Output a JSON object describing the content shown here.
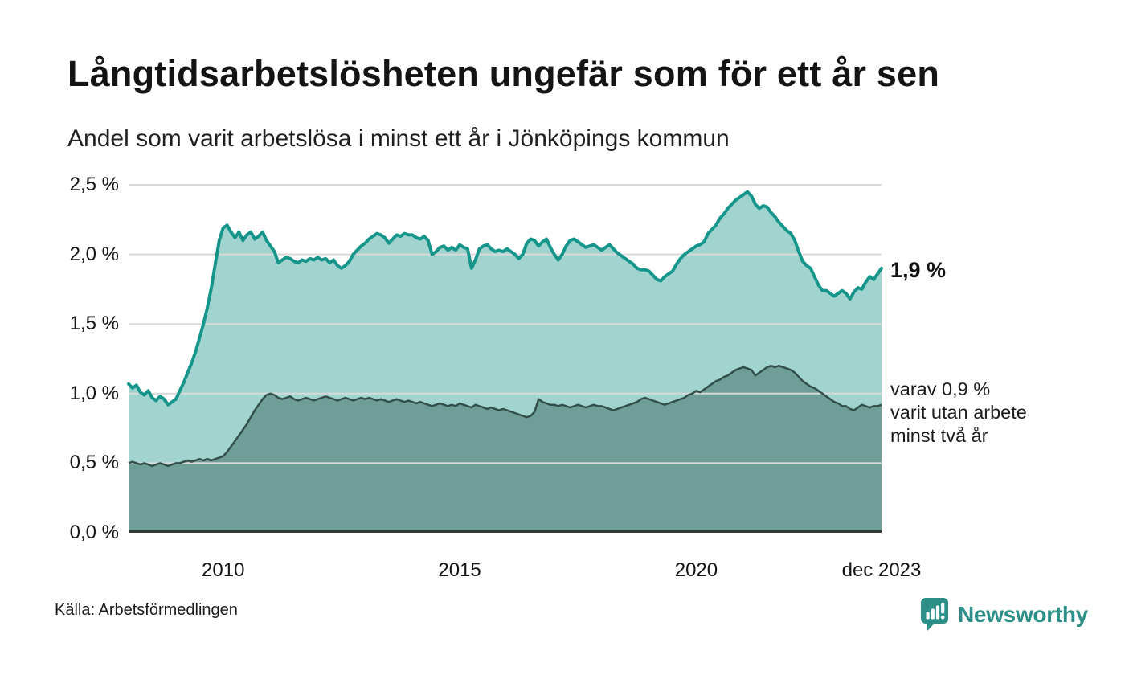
{
  "header": {
    "title": "Långtidsarbetslösheten ungefär som för ett år sen",
    "subtitle": "Andel som varit arbetslösa i minst ett år i Jönköpings kommun"
  },
  "annotations": {
    "end_total": "1,9 %",
    "end_sub_lines": [
      "varav 0,9 %",
      "varit utan arbete",
      "minst två år"
    ]
  },
  "footer": {
    "source": "Källa: Arbetsförmedlingen",
    "brand": "Newsworthy"
  },
  "colors": {
    "line_total": "#16968a",
    "fill_total": "#a2d4cf",
    "line_sub": "#334f4a",
    "fill_sub": "#6f9e98",
    "gridline": "#d9d9d9",
    "baseline": "#333b39",
    "brand_teal": "#2e8f88",
    "text": "#141414"
  },
  "chart_data": {
    "type": "area",
    "title": "Långtidsarbetslösheten ungefär som för ett år sen",
    "subtitle": "Andel som varit arbetslösa i minst ett år i Jönköpings kommun",
    "unit": "%",
    "grid": true,
    "legend_position": "end-of-line-labels",
    "x_start_year": 2008,
    "x_interval": "monthly",
    "x_end_label": "dec 2023",
    "ylim": [
      0,
      2.5
    ],
    "yticks": [
      {
        "value": 0.0,
        "label": "0,0 %"
      },
      {
        "value": 0.5,
        "label": "0,5 %"
      },
      {
        "value": 1.0,
        "label": "1,0 %"
      },
      {
        "value": 1.5,
        "label": "1,5 %"
      },
      {
        "value": 2.0,
        "label": "2,0 %"
      },
      {
        "value": 2.5,
        "label": "2,5 %"
      }
    ],
    "xticks": [
      {
        "year": 2010.0,
        "label": "2010"
      },
      {
        "year": 2015.0,
        "label": "2015"
      },
      {
        "year": 2020.0,
        "label": "2020"
      },
      {
        "year": 2023.9167,
        "label": "dec 2023"
      }
    ],
    "series": [
      {
        "id": "arbetslosa-minst-ett-ar",
        "end_label": "1,9 %",
        "latest_value": 1.9,
        "color": "#16968a",
        "fill": "#a2d4cf",
        "values": [
          1.07,
          1.04,
          1.06,
          1.01,
          0.99,
          1.02,
          0.97,
          0.95,
          0.98,
          0.96,
          0.92,
          0.94,
          0.96,
          1.02,
          1.08,
          1.15,
          1.22,
          1.3,
          1.4,
          1.5,
          1.62,
          1.76,
          1.93,
          2.1,
          2.19,
          2.21,
          2.16,
          2.12,
          2.16,
          2.1,
          2.14,
          2.16,
          2.11,
          2.13,
          2.16,
          2.1,
          2.06,
          2.02,
          1.94,
          1.96,
          1.98,
          1.97,
          1.95,
          1.94,
          1.96,
          1.95,
          1.97,
          1.96,
          1.98,
          1.96,
          1.97,
          1.94,
          1.96,
          1.92,
          1.9,
          1.92,
          1.95,
          2.0,
          2.03,
          2.06,
          2.08,
          2.11,
          2.13,
          2.15,
          2.14,
          2.12,
          2.08,
          2.11,
          2.14,
          2.13,
          2.15,
          2.14,
          2.14,
          2.12,
          2.11,
          2.13,
          2.1,
          2.0,
          2.02,
          2.05,
          2.06,
          2.03,
          2.05,
          2.03,
          2.07,
          2.05,
          2.04,
          1.9,
          1.96,
          2.04,
          2.06,
          2.07,
          2.04,
          2.02,
          2.03,
          2.02,
          2.04,
          2.02,
          2.0,
          1.97,
          2.0,
          2.08,
          2.11,
          2.1,
          2.06,
          2.09,
          2.11,
          2.05,
          2.0,
          1.96,
          2.0,
          2.06,
          2.1,
          2.11,
          2.09,
          2.07,
          2.05,
          2.06,
          2.07,
          2.05,
          2.03,
          2.05,
          2.07,
          2.04,
          2.01,
          1.99,
          1.97,
          1.95,
          1.93,
          1.9,
          1.89,
          1.89,
          1.88,
          1.85,
          1.82,
          1.81,
          1.84,
          1.86,
          1.88,
          1.93,
          1.97,
          2.0,
          2.02,
          2.04,
          2.06,
          2.07,
          2.09,
          2.15,
          2.18,
          2.21,
          2.26,
          2.29,
          2.33,
          2.36,
          2.39,
          2.41,
          2.43,
          2.45,
          2.42,
          2.36,
          2.33,
          2.35,
          2.34,
          2.3,
          2.27,
          2.23,
          2.2,
          2.17,
          2.15,
          2.1,
          2.02,
          1.95,
          1.92,
          1.9,
          1.84,
          1.78,
          1.74,
          1.74,
          1.72,
          1.7,
          1.72,
          1.74,
          1.72,
          1.68,
          1.73,
          1.76,
          1.75,
          1.8,
          1.84,
          1.82,
          1.86,
          1.9
        ]
      },
      {
        "id": "varav-utan-arbete-minst-tva-ar",
        "end_label": "varav 0,9 % varit utan arbete minst två år",
        "latest_value": 0.9,
        "color": "#334f4a",
        "fill": "#6f9e98",
        "values": [
          0.5,
          0.51,
          0.5,
          0.49,
          0.5,
          0.49,
          0.48,
          0.49,
          0.5,
          0.49,
          0.48,
          0.49,
          0.5,
          0.5,
          0.51,
          0.52,
          0.51,
          0.52,
          0.53,
          0.52,
          0.53,
          0.52,
          0.53,
          0.54,
          0.55,
          0.58,
          0.62,
          0.66,
          0.7,
          0.74,
          0.78,
          0.83,
          0.88,
          0.92,
          0.96,
          0.99,
          1.0,
          0.99,
          0.97,
          0.96,
          0.97,
          0.98,
          0.96,
          0.95,
          0.96,
          0.97,
          0.96,
          0.95,
          0.96,
          0.97,
          0.98,
          0.97,
          0.96,
          0.95,
          0.96,
          0.97,
          0.96,
          0.95,
          0.96,
          0.97,
          0.96,
          0.97,
          0.96,
          0.95,
          0.96,
          0.95,
          0.94,
          0.95,
          0.96,
          0.95,
          0.94,
          0.95,
          0.94,
          0.93,
          0.94,
          0.93,
          0.92,
          0.91,
          0.92,
          0.93,
          0.92,
          0.91,
          0.92,
          0.91,
          0.93,
          0.92,
          0.91,
          0.9,
          0.92,
          0.91,
          0.9,
          0.89,
          0.9,
          0.89,
          0.88,
          0.89,
          0.88,
          0.87,
          0.86,
          0.85,
          0.84,
          0.83,
          0.84,
          0.87,
          0.96,
          0.94,
          0.93,
          0.92,
          0.92,
          0.91,
          0.92,
          0.91,
          0.9,
          0.91,
          0.92,
          0.91,
          0.9,
          0.91,
          0.92,
          0.91,
          0.91,
          0.9,
          0.89,
          0.88,
          0.89,
          0.9,
          0.91,
          0.92,
          0.93,
          0.94,
          0.96,
          0.97,
          0.96,
          0.95,
          0.94,
          0.93,
          0.92,
          0.93,
          0.94,
          0.95,
          0.96,
          0.97,
          0.99,
          1.0,
          1.02,
          1.01,
          1.03,
          1.05,
          1.07,
          1.09,
          1.1,
          1.12,
          1.13,
          1.15,
          1.17,
          1.18,
          1.19,
          1.18,
          1.17,
          1.13,
          1.15,
          1.17,
          1.19,
          1.2,
          1.19,
          1.2,
          1.19,
          1.18,
          1.17,
          1.15,
          1.12,
          1.09,
          1.07,
          1.05,
          1.04,
          1.02,
          1.0,
          0.98,
          0.96,
          0.94,
          0.93,
          0.91,
          0.91,
          0.89,
          0.88,
          0.9,
          0.92,
          0.91,
          0.9,
          0.91,
          0.91,
          0.92
        ]
      }
    ]
  }
}
